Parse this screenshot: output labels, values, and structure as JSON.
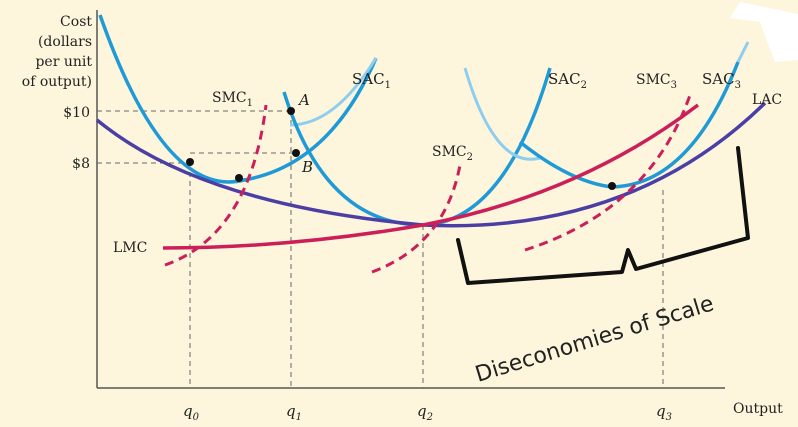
{
  "chart_data": {
    "type": "line",
    "ylabel_lines": [
      "Cost",
      "(dollars",
      "per unit",
      "of output)"
    ],
    "xlabel": "Output",
    "y_ticks": [
      {
        "label": "$10",
        "value": 10
      },
      {
        "label": "$8",
        "value": 8
      }
    ],
    "x_ticks": [
      {
        "base": "q",
        "sub": "0"
      },
      {
        "base": "q",
        "sub": "1"
      },
      {
        "base": "q",
        "sub": "2"
      },
      {
        "base": "q",
        "sub": "3"
      }
    ],
    "series": [
      {
        "name": "LAC",
        "color": "#4b3fa6",
        "style": "solid"
      },
      {
        "name": "LMC",
        "color": "#cc1f5a",
        "style": "solid"
      },
      {
        "name": "SAC1",
        "color": "#1f9ad6",
        "style": "solid"
      },
      {
        "name": "SAC2",
        "color": "#1f9ad6",
        "style": "solid"
      },
      {
        "name": "SAC3",
        "color": "#1f9ad6",
        "style": "solid"
      },
      {
        "name": "SMC1",
        "color": "#cc1f5a",
        "style": "dashed"
      },
      {
        "name": "SMC2",
        "color": "#cc1f5a",
        "style": "dashed"
      },
      {
        "name": "SMC3",
        "color": "#cc1f5a",
        "style": "dashed"
      }
    ],
    "labels": {
      "SAC1": {
        "base": "SAC",
        "sub": "1"
      },
      "SAC2": {
        "base": "SAC",
        "sub": "2"
      },
      "SAC3": {
        "base": "SAC",
        "sub": "3"
      },
      "SMC1": {
        "base": "SMC",
        "sub": "1"
      },
      "SMC2": {
        "base": "SMC",
        "sub": "2"
      },
      "SMC3": {
        "base": "SMC",
        "sub": "3"
      },
      "LAC": "LAC",
      "LMC": "LMC"
    },
    "points": [
      {
        "label": "A"
      },
      {
        "label": "B"
      }
    ],
    "annotation": "Diseconomies of Scale",
    "grid": false
  }
}
